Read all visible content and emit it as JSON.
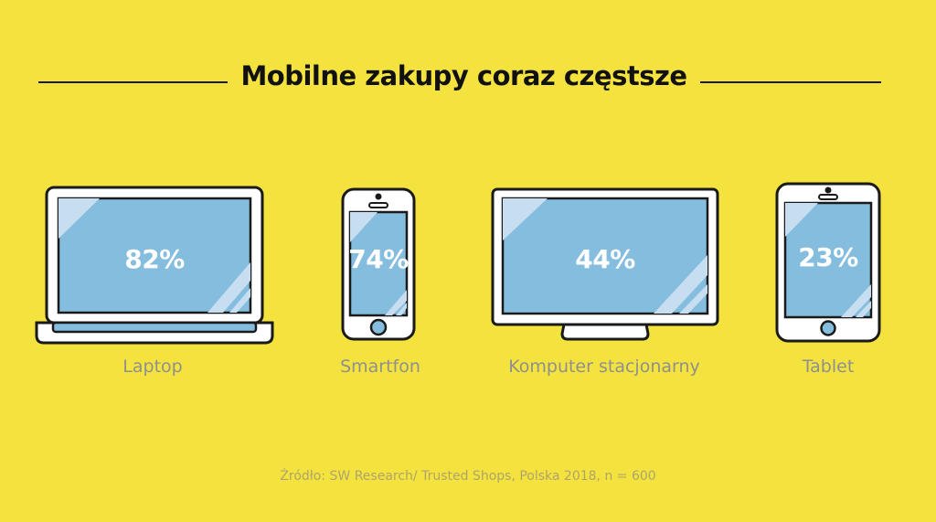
{
  "title": "Mobilne zakupy coraz częstsze",
  "colors": {
    "background": "#f4e33f",
    "screen": "#85bddf",
    "outline": "#1a1a1a",
    "value_text": "#ffffff",
    "label_text": "#8f8f8f"
  },
  "devices": [
    {
      "icon": "laptop-icon",
      "value": "82%",
      "label": "Laptop"
    },
    {
      "icon": "smartphone-icon",
      "value": "74%",
      "label": "Smartfon"
    },
    {
      "icon": "desktop-monitor-icon",
      "value": "44%",
      "label": "Komputer stacjonarny"
    },
    {
      "icon": "tablet-icon",
      "value": "23%",
      "label": "Tablet"
    }
  ],
  "source": "Źródło: SW Research/ Trusted Shops, Polska 2018, n = 600"
}
